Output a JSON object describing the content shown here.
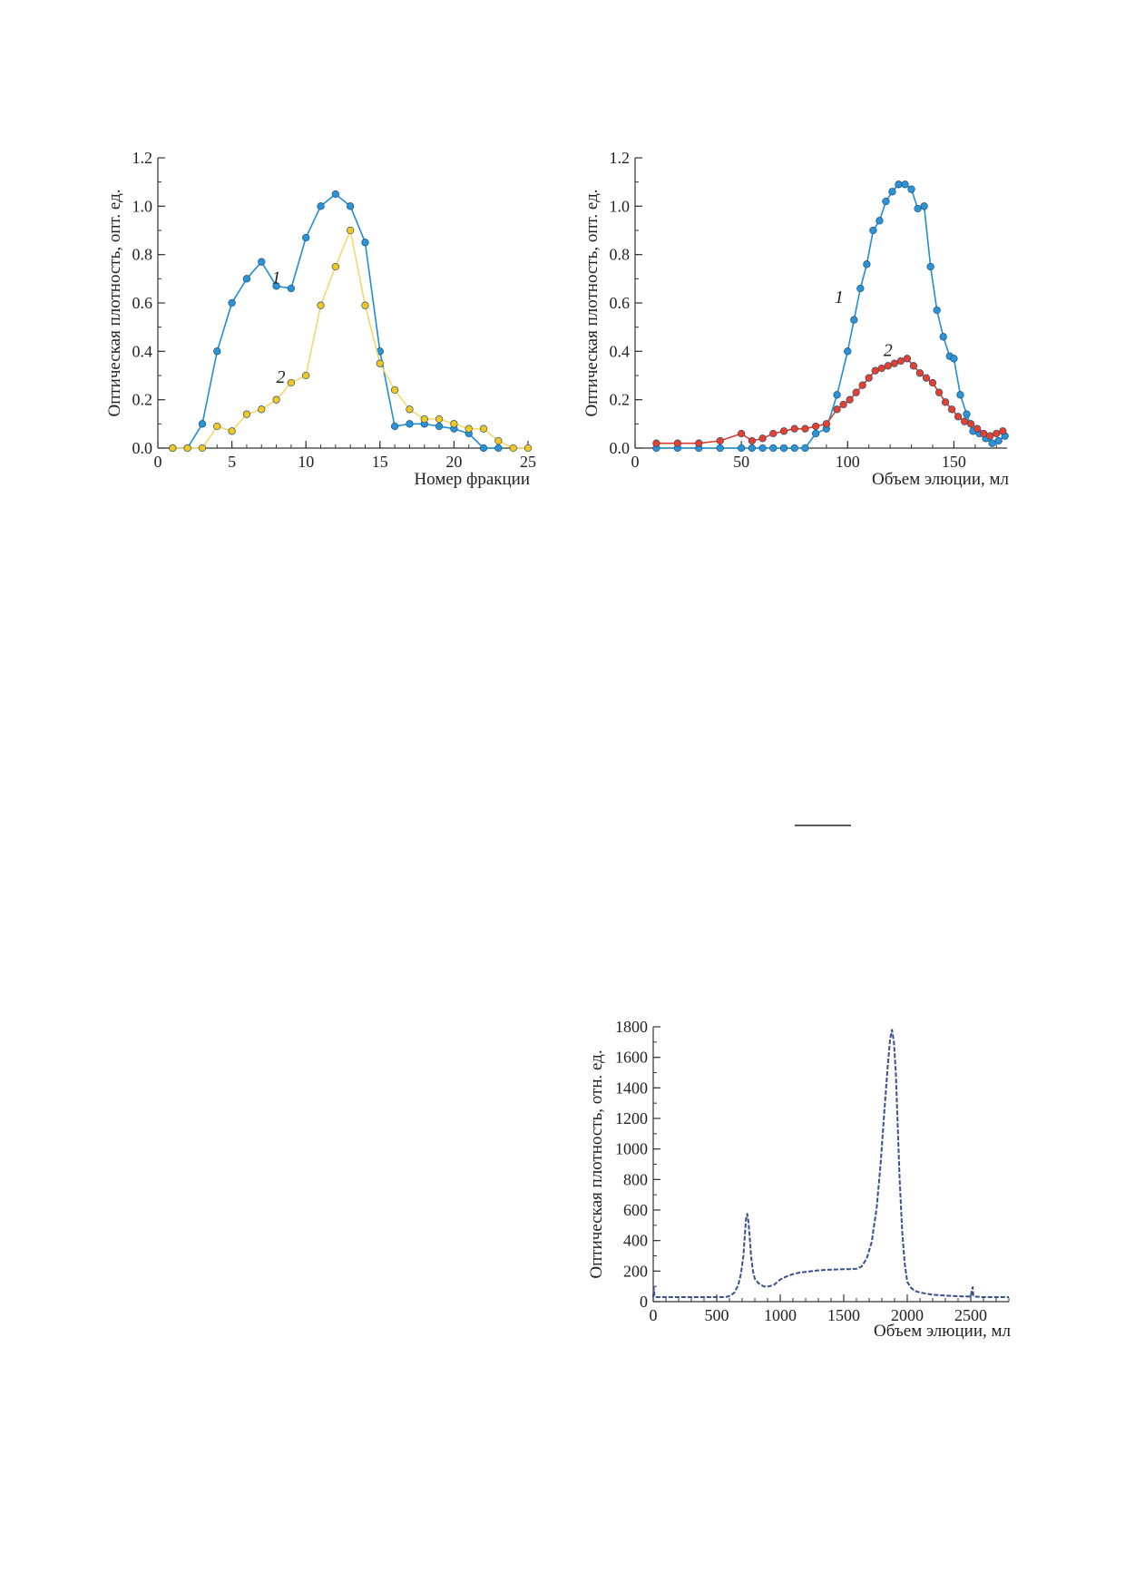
{
  "chart_data": [
    {
      "type": "line",
      "xlabel": "Номер фракции",
      "ylabel": "Оптическая плотность, опт. ед.",
      "xlim": [
        0,
        25
      ],
      "ylim": [
        0,
        1.2
      ],
      "xticks": [
        "0",
        "5",
        "10",
        "15",
        "20",
        "25"
      ],
      "yticks": [
        "0.0",
        "0.2",
        "0.4",
        "0.6",
        "0.8",
        "1.0",
        "1.2"
      ],
      "series": [
        {
          "name": "1",
          "color": "#1f8fd0",
          "marker_fill": "#2b93d6",
          "x": [
            1,
            2,
            3,
            4,
            5,
            6,
            7,
            8,
            9,
            10,
            11,
            12,
            13,
            14,
            15,
            16,
            17,
            18,
            19,
            20,
            21,
            22,
            23
          ],
          "values": [
            0.0,
            0.0,
            0.1,
            0.4,
            0.6,
            0.7,
            0.77,
            0.67,
            0.66,
            0.87,
            1.0,
            1.05,
            1.0,
            0.85,
            0.4,
            0.09,
            0.1,
            0.1,
            0.09,
            0.08,
            0.06,
            0.0,
            0.0
          ]
        },
        {
          "name": "2",
          "color": "#f2d96a",
          "marker_fill": "#f5c61e",
          "x": [
            1,
            2,
            3,
            4,
            5,
            6,
            7,
            8,
            9,
            10,
            11,
            12,
            13,
            14,
            15,
            16,
            17,
            18,
            19,
            20,
            21,
            22,
            23,
            24,
            25
          ],
          "values": [
            0.0,
            0.0,
            0.0,
            0.09,
            0.07,
            0.14,
            0.16,
            0.2,
            0.27,
            0.3,
            0.59,
            0.75,
            0.9,
            0.59,
            0.35,
            0.24,
            0.16,
            0.12,
            0.12,
            0.1,
            0.08,
            0.08,
            0.03,
            0.0,
            0.0
          ]
        }
      ]
    },
    {
      "type": "line",
      "xlabel": "Объем элюции, мл",
      "ylabel": "Оптическая плотность, опт. ед.",
      "xlim": [
        0,
        175
      ],
      "ylim": [
        0,
        1.2
      ],
      "xticks": [
        "0",
        "50",
        "100",
        "150"
      ],
      "yticks": [
        "0.0",
        "0.2",
        "0.4",
        "0.6",
        "0.8",
        "1.0",
        "1.2"
      ],
      "series": [
        {
          "name": "1",
          "color": "#1f8fd0",
          "marker_fill": "#2b93d6",
          "x": [
            10,
            20,
            30,
            40,
            50,
            55,
            60,
            65,
            70,
            75,
            80,
            85,
            90,
            95,
            100,
            103,
            106,
            109,
            112,
            115,
            118,
            121,
            124,
            127,
            130,
            133,
            136,
            139,
            142,
            145,
            148,
            150,
            153,
            156,
            159,
            162,
            165,
            168,
            171,
            174
          ],
          "values": [
            0.0,
            0.0,
            0.0,
            0.0,
            0.0,
            0.0,
            0.0,
            0.0,
            0.0,
            0.0,
            0.0,
            0.06,
            0.08,
            0.22,
            0.4,
            0.53,
            0.66,
            0.76,
            0.9,
            0.94,
            1.02,
            1.06,
            1.09,
            1.09,
            1.07,
            0.99,
            1.0,
            0.75,
            0.57,
            0.46,
            0.38,
            0.37,
            0.22,
            0.14,
            0.07,
            0.06,
            0.04,
            0.02,
            0.03,
            0.05
          ]
        },
        {
          "name": "2",
          "color": "#d83a2c",
          "marker_fill": "#e8402c",
          "x": [
            10,
            20,
            30,
            40,
            50,
            55,
            60,
            65,
            70,
            75,
            80,
            85,
            90,
            95,
            98,
            101,
            104,
            107,
            110,
            113,
            116,
            119,
            122,
            125,
            128,
            131,
            134,
            137,
            140,
            143,
            146,
            149,
            152,
            155,
            158,
            161,
            164,
            167,
            170,
            173
          ],
          "values": [
            0.02,
            0.02,
            0.02,
            0.03,
            0.06,
            0.03,
            0.04,
            0.06,
            0.07,
            0.08,
            0.08,
            0.09,
            0.1,
            0.16,
            0.18,
            0.2,
            0.23,
            0.26,
            0.29,
            0.32,
            0.33,
            0.34,
            0.35,
            0.36,
            0.37,
            0.34,
            0.31,
            0.29,
            0.27,
            0.23,
            0.19,
            0.16,
            0.13,
            0.11,
            0.1,
            0.08,
            0.06,
            0.05,
            0.06,
            0.07
          ]
        }
      ]
    },
    {
      "type": "line",
      "xlabel": "Объем элюции, мл",
      "ylabel": "Оптическая плотность, отн. ед.",
      "xlim": [
        0,
        2800
      ],
      "ylim": [
        0,
        1800
      ],
      "xticks": [
        "0",
        "500",
        "1000",
        "1500",
        "2000",
        "2500"
      ],
      "yticks": [
        "0",
        "200",
        "400",
        "600",
        "800",
        "1000",
        "1200",
        "1400",
        "1600",
        "1800"
      ],
      "series": [
        {
          "color": "#3a4f8e",
          "x": [
            0,
            5,
            10,
            20,
            100,
            200,
            300,
            400,
            500,
            550,
            580,
            610,
            640,
            670,
            690,
            710,
            720,
            730,
            740,
            750,
            760,
            770,
            785,
            800,
            830,
            870,
            910,
            950,
            980,
            1000,
            1050,
            1100,
            1150,
            1200,
            1300,
            1400,
            1500,
            1560,
            1600,
            1640,
            1680,
            1720,
            1760,
            1790,
            1820,
            1845,
            1865,
            1880,
            1895,
            1910,
            1925,
            1940,
            1960,
            1980,
            2000,
            2030,
            2060,
            2100,
            2200,
            2300,
            2400,
            2500,
            2510,
            2515,
            2520,
            2530,
            2600,
            2700,
            2800
          ],
          "values": [
            30,
            90,
            40,
            30,
            30,
            30,
            30,
            30,
            30,
            30,
            32,
            40,
            60,
            110,
            180,
            300,
            420,
            540,
            575,
            520,
            420,
            300,
            200,
            150,
            120,
            100,
            100,
            110,
            130,
            145,
            165,
            180,
            190,
            195,
            205,
            210,
            212,
            213,
            215,
            230,
            280,
            390,
            620,
            900,
            1250,
            1530,
            1720,
            1780,
            1700,
            1500,
            1150,
            800,
            460,
            250,
            130,
            90,
            70,
            60,
            45,
            40,
            35,
            33,
            80,
            95,
            40,
            33,
            30,
            30,
            30
          ]
        }
      ]
    }
  ]
}
